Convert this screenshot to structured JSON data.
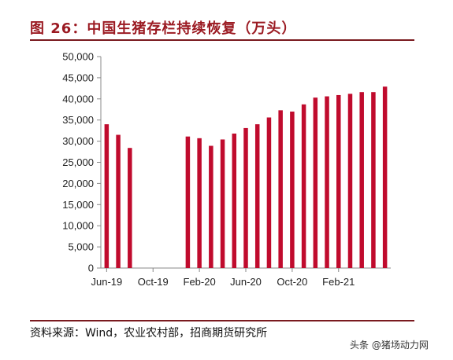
{
  "title": "图 26：中国生猪存栏持续恢复（万头）",
  "source": "资料来源：Wind，农业农村部，招商期货研究所",
  "watermark": "头条 @猪场动力网",
  "colors": {
    "bar": "#c00b2d",
    "title": "#9b1a22",
    "rule": "#7a1a1f"
  },
  "chart_data": {
    "type": "bar",
    "title": "图 26：中国生猪存栏持续恢复（万头）",
    "xlabel": "",
    "ylabel": "",
    "ylim": [
      0,
      50000
    ],
    "yticks": [
      0,
      5000,
      10000,
      15000,
      20000,
      25000,
      30000,
      35000,
      40000,
      45000,
      50000
    ],
    "ytick_labels": [
      "0",
      "5,000",
      "10,000",
      "15,000",
      "20,000",
      "25,000",
      "30,000",
      "35,000",
      "40,000",
      "45,000",
      "50,000"
    ],
    "categories": [
      "Jun-19",
      "Jul-19",
      "Aug-19",
      "Sep-19",
      "Oct-19",
      "Nov-19",
      "Dec-19",
      "Jan-20",
      "Feb-20",
      "Mar-20",
      "Apr-20",
      "May-20",
      "Jun-20",
      "Jul-20",
      "Aug-20",
      "Sep-20",
      "Oct-20",
      "Nov-20",
      "Dec-20",
      "Jan-21",
      "Feb-21",
      "Mar-21",
      "Apr-21",
      "May-21",
      "Jun-21"
    ],
    "values": [
      34000,
      31500,
      28400,
      null,
      null,
      null,
      null,
      31100,
      30700,
      28900,
      30400,
      31800,
      33100,
      34000,
      35600,
      37300,
      37000,
      38700,
      40300,
      40600,
      40900,
      41200,
      41600,
      41600,
      42900
    ],
    "xtick_labels": [
      {
        "index": 0,
        "label": "Jun-19"
      },
      {
        "index": 4,
        "label": "Oct-19"
      },
      {
        "index": 8,
        "label": "Feb-20"
      },
      {
        "index": 12,
        "label": "Jun-20"
      },
      {
        "index": 16,
        "label": "Oct-20"
      },
      {
        "index": 20,
        "label": "Feb-21"
      }
    ],
    "grid": false,
    "legend": "none"
  }
}
